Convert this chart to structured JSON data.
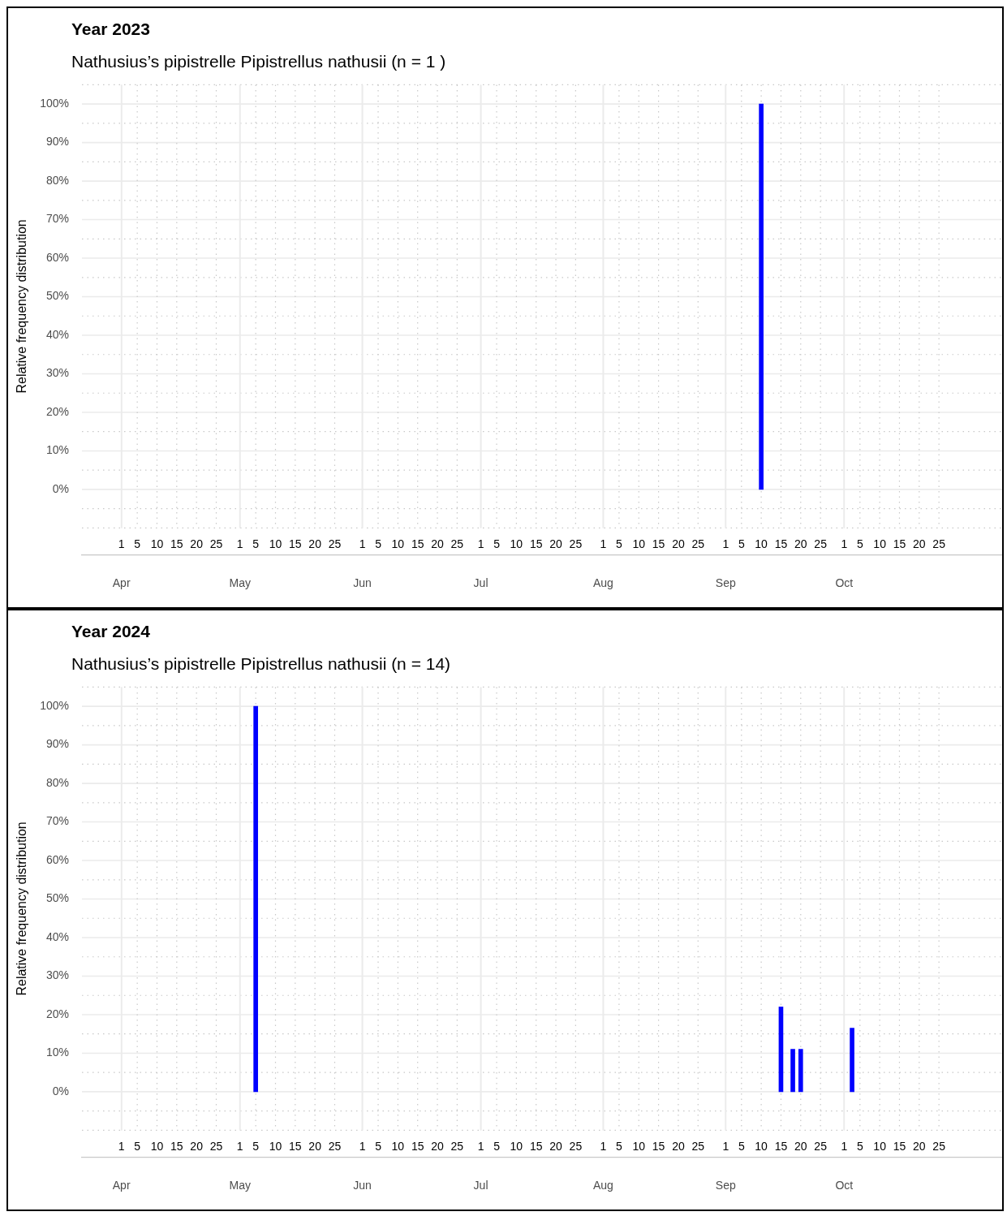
{
  "chart_data": [
    {
      "type": "bar",
      "title": "Year 2023",
      "subtitle": "Nathusius’s pipistrelle Pipistrellus nathusii (n = 1 )",
      "ylabel": "Relative frequency distribution",
      "series": [
        {
          "color": "#0000ff",
          "x": [
            "2023-09-10"
          ],
          "values": [
            100
          ]
        }
      ],
      "xlim": [
        "2023-03-22",
        "2023-11-10"
      ],
      "xticks": [
        {
          "value": "2023-04-01",
          "label": "1"
        },
        {
          "value": "2023-04-05",
          "label": "5"
        },
        {
          "value": "2023-04-10",
          "label": "10"
        },
        {
          "value": "2023-04-15",
          "label": "15"
        },
        {
          "value": "2023-04-20",
          "label": "20"
        },
        {
          "value": "2023-04-25",
          "label": "25"
        },
        {
          "value": "2023-05-01",
          "label": "1"
        },
        {
          "value": "2023-05-05",
          "label": "5"
        },
        {
          "value": "2023-05-10",
          "label": "10"
        },
        {
          "value": "2023-05-15",
          "label": "15"
        },
        {
          "value": "2023-05-20",
          "label": "20"
        },
        {
          "value": "2023-05-25",
          "label": "25"
        },
        {
          "value": "2023-06-01",
          "label": "1"
        },
        {
          "value": "2023-06-05",
          "label": "5"
        },
        {
          "value": "2023-06-10",
          "label": "10"
        },
        {
          "value": "2023-06-15",
          "label": "15"
        },
        {
          "value": "2023-06-20",
          "label": "20"
        },
        {
          "value": "2023-06-25",
          "label": "25"
        },
        {
          "value": "2023-07-01",
          "label": "1"
        },
        {
          "value": "2023-07-05",
          "label": "5"
        },
        {
          "value": "2023-07-10",
          "label": "10"
        },
        {
          "value": "2023-07-15",
          "label": "15"
        },
        {
          "value": "2023-07-20",
          "label": "20"
        },
        {
          "value": "2023-07-25",
          "label": "25"
        },
        {
          "value": "2023-08-01",
          "label": "1"
        },
        {
          "value": "2023-08-05",
          "label": "5"
        },
        {
          "value": "2023-08-10",
          "label": "10"
        },
        {
          "value": "2023-08-15",
          "label": "15"
        },
        {
          "value": "2023-08-20",
          "label": "20"
        },
        {
          "value": "2023-08-25",
          "label": "25"
        },
        {
          "value": "2023-09-01",
          "label": "1"
        },
        {
          "value": "2023-09-05",
          "label": "5"
        },
        {
          "value": "2023-09-10",
          "label": "10"
        },
        {
          "value": "2023-09-15",
          "label": "15"
        },
        {
          "value": "2023-09-20",
          "label": "20"
        },
        {
          "value": "2023-09-25",
          "label": "25"
        },
        {
          "value": "2023-10-01",
          "label": "1"
        },
        {
          "value": "2023-10-05",
          "label": "5"
        },
        {
          "value": "2023-10-10",
          "label": "10"
        },
        {
          "value": "2023-10-15",
          "label": "15"
        },
        {
          "value": "2023-10-20",
          "label": "20"
        },
        {
          "value": "2023-10-25",
          "label": "25"
        }
      ],
      "x2lim": [
        "2023-03-22",
        "2023-11-10"
      ],
      "x2ticks": [
        {
          "value": "2023-04-01",
          "label": "Apr"
        },
        {
          "value": "2023-05-01",
          "label": "May"
        },
        {
          "value": "2023-06-01",
          "label": "Jun"
        },
        {
          "value": "2023-07-01",
          "label": "Jul"
        },
        {
          "value": "2023-08-01",
          "label": "Aug"
        },
        {
          "value": "2023-09-01",
          "label": "Sep"
        },
        {
          "value": "2023-10-01",
          "label": "Oct"
        }
      ],
      "ylim": [
        -10,
        105
      ],
      "yticks": [
        {
          "value": -10,
          "label": null
        },
        {
          "value": -5,
          "label": null
        },
        {
          "value": 0,
          "label": "0%"
        },
        {
          "value": 5,
          "label": null
        },
        {
          "value": 10,
          "label": "10%"
        },
        {
          "value": 15,
          "label": null
        },
        {
          "value": 20,
          "label": "20%"
        },
        {
          "value": 25,
          "label": null
        },
        {
          "value": 30,
          "label": "30%"
        },
        {
          "value": 35,
          "label": null
        },
        {
          "value": 40,
          "label": "40%"
        },
        {
          "value": 45,
          "label": null
        },
        {
          "value": 50,
          "label": "50%"
        },
        {
          "value": 55,
          "label": null
        },
        {
          "value": 60,
          "label": "60%"
        },
        {
          "value": 65,
          "label": null
        },
        {
          "value": 70,
          "label": "70%"
        },
        {
          "value": 75,
          "label": null
        },
        {
          "value": 80,
          "label": "80%"
        },
        {
          "value": 85,
          "label": null
        },
        {
          "value": 90,
          "label": "90%"
        },
        {
          "value": 95,
          "label": null
        },
        {
          "value": 100,
          "label": "100%"
        },
        {
          "value": 105,
          "label": null
        }
      ],
      "grid": true,
      "legend": false
    },
    {
      "type": "bar",
      "title": "Year 2024",
      "subtitle": "Nathusius’s pipistrelle Pipistrellus nathusii (n = 14)",
      "ylabel": "Relative frequency distribution",
      "series": [
        {
          "color": "#0000ff",
          "x": [
            "2024-05-05",
            "2024-09-15",
            "2024-09-18",
            "2024-09-20",
            "2024-10-03"
          ],
          "values": [
            100,
            22,
            11,
            11,
            16.5
          ]
        }
      ],
      "xlim": [
        "2024-03-22",
        "2024-11-10"
      ],
      "xticks": [
        {
          "value": "2024-04-01",
          "label": "1"
        },
        {
          "value": "2024-04-05",
          "label": "5"
        },
        {
          "value": "2024-04-10",
          "label": "10"
        },
        {
          "value": "2024-04-15",
          "label": "15"
        },
        {
          "value": "2024-04-20",
          "label": "20"
        },
        {
          "value": "2024-04-25",
          "label": "25"
        },
        {
          "value": "2024-05-01",
          "label": "1"
        },
        {
          "value": "2024-05-05",
          "label": "5"
        },
        {
          "value": "2024-05-10",
          "label": "10"
        },
        {
          "value": "2024-05-15",
          "label": "15"
        },
        {
          "value": "2024-05-20",
          "label": "20"
        },
        {
          "value": "2024-05-25",
          "label": "25"
        },
        {
          "value": "2024-06-01",
          "label": "1"
        },
        {
          "value": "2024-06-05",
          "label": "5"
        },
        {
          "value": "2024-06-10",
          "label": "10"
        },
        {
          "value": "2024-06-15",
          "label": "15"
        },
        {
          "value": "2024-06-20",
          "label": "20"
        },
        {
          "value": "2024-06-25",
          "label": "25"
        },
        {
          "value": "2024-07-01",
          "label": "1"
        },
        {
          "value": "2024-07-05",
          "label": "5"
        },
        {
          "value": "2024-07-10",
          "label": "10"
        },
        {
          "value": "2024-07-15",
          "label": "15"
        },
        {
          "value": "2024-07-20",
          "label": "20"
        },
        {
          "value": "2024-07-25",
          "label": "25"
        },
        {
          "value": "2024-08-01",
          "label": "1"
        },
        {
          "value": "2024-08-05",
          "label": "5"
        },
        {
          "value": "2024-08-10",
          "label": "10"
        },
        {
          "value": "2024-08-15",
          "label": "15"
        },
        {
          "value": "2024-08-20",
          "label": "20"
        },
        {
          "value": "2024-08-25",
          "label": "25"
        },
        {
          "value": "2024-09-01",
          "label": "1"
        },
        {
          "value": "2024-09-05",
          "label": "5"
        },
        {
          "value": "2024-09-10",
          "label": "10"
        },
        {
          "value": "2024-09-15",
          "label": "15"
        },
        {
          "value": "2024-09-20",
          "label": "20"
        },
        {
          "value": "2024-09-25",
          "label": "25"
        },
        {
          "value": "2024-10-01",
          "label": "1"
        },
        {
          "value": "2024-10-05",
          "label": "5"
        },
        {
          "value": "2024-10-10",
          "label": "10"
        },
        {
          "value": "2024-10-15",
          "label": "15"
        },
        {
          "value": "2024-10-20",
          "label": "20"
        },
        {
          "value": "2024-10-25",
          "label": "25"
        }
      ],
      "x2lim": [
        "2024-03-22",
        "2024-11-10"
      ],
      "x2ticks": [
        {
          "value": "2024-04-01",
          "label": "Apr"
        },
        {
          "value": "2024-05-01",
          "label": "May"
        },
        {
          "value": "2024-06-01",
          "label": "Jun"
        },
        {
          "value": "2024-07-01",
          "label": "Jul"
        },
        {
          "value": "2024-08-01",
          "label": "Aug"
        },
        {
          "value": "2024-09-01",
          "label": "Sep"
        },
        {
          "value": "2024-10-01",
          "label": "Oct"
        }
      ],
      "ylim": [
        -10,
        105
      ],
      "yticks": [
        {
          "value": -10,
          "label": null
        },
        {
          "value": -5,
          "label": null
        },
        {
          "value": 0,
          "label": "0%"
        },
        {
          "value": 5,
          "label": null
        },
        {
          "value": 10,
          "label": "10%"
        },
        {
          "value": 15,
          "label": null
        },
        {
          "value": 20,
          "label": "20%"
        },
        {
          "value": 25,
          "label": null
        },
        {
          "value": 30,
          "label": "30%"
        },
        {
          "value": 35,
          "label": null
        },
        {
          "value": 40,
          "label": "40%"
        },
        {
          "value": 45,
          "label": null
        },
        {
          "value": 50,
          "label": "50%"
        },
        {
          "value": 55,
          "label": null
        },
        {
          "value": 60,
          "label": "60%"
        },
        {
          "value": 65,
          "label": null
        },
        {
          "value": 70,
          "label": "70%"
        },
        {
          "value": 75,
          "label": null
        },
        {
          "value": 80,
          "label": "80%"
        },
        {
          "value": 85,
          "label": null
        },
        {
          "value": 90,
          "label": "90%"
        },
        {
          "value": 95,
          "label": null
        },
        {
          "value": 100,
          "label": "100%"
        },
        {
          "value": 105,
          "label": null
        }
      ],
      "grid": true,
      "legend": false
    }
  ]
}
